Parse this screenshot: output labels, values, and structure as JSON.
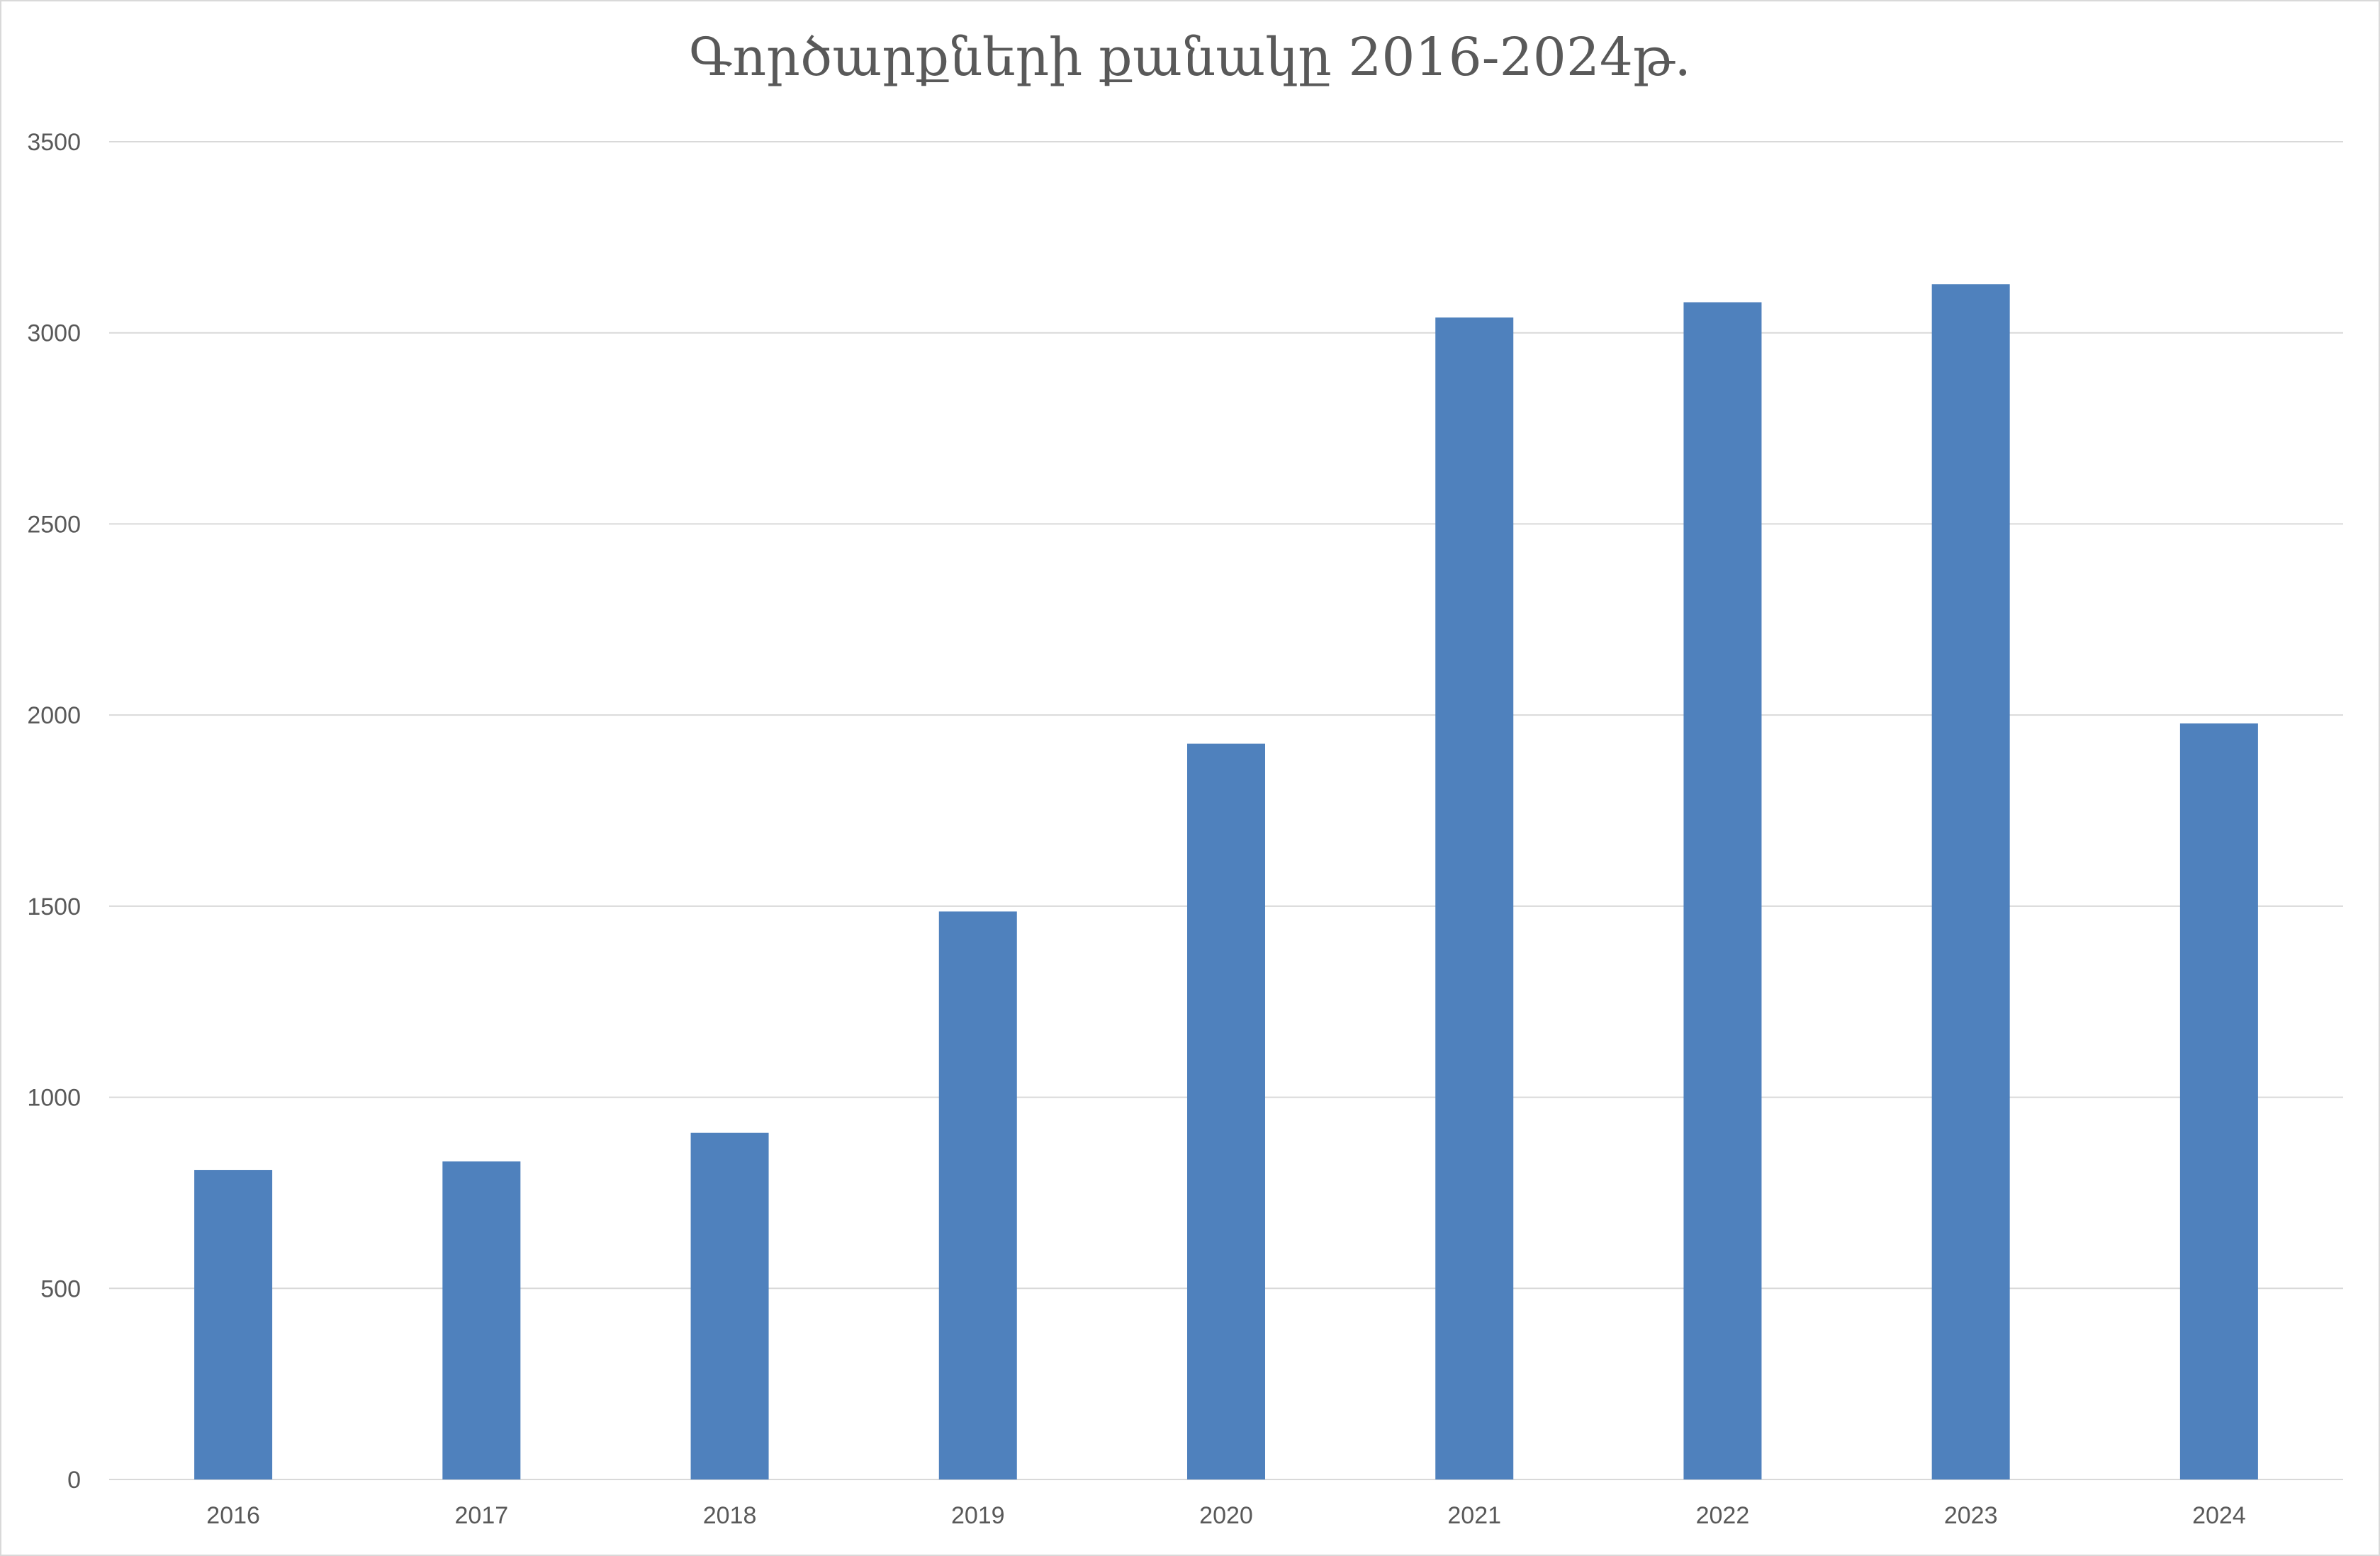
{
  "chart_data": {
    "type": "bar",
    "title": "Գործարքների քանակը 2016-2024թ.",
    "xlabel": "",
    "ylabel": "",
    "categories": [
      "2016",
      "2017",
      "2018",
      "2019",
      "2020",
      "2021",
      "2022",
      "2023",
      "2024"
    ],
    "series": [
      {
        "values": [
          810,
          832,
          907,
          1486,
          1925,
          3040,
          3080,
          3127,
          1978
        ]
      }
    ],
    "ylim": [
      0,
      3500
    ],
    "yticks": [
      "0",
      "500",
      "1000",
      "1500",
      "2000",
      "2500",
      "3000",
      "3500"
    ],
    "grid": true,
    "legend": "none",
    "colors": {
      "bar": "#4f81bd",
      "grid": "#d9d9d9",
      "text": "#595959"
    }
  }
}
